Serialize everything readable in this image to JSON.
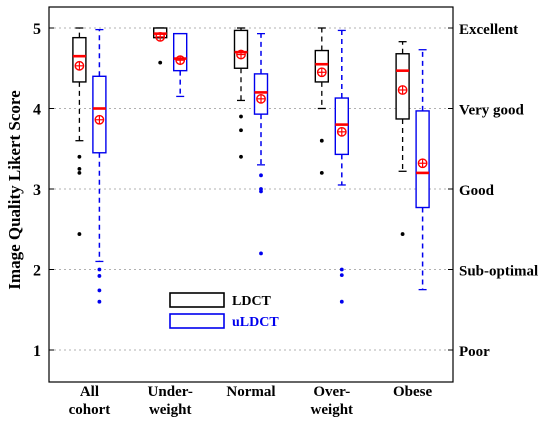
{
  "chart_data": {
    "type": "box",
    "ylabel": "Image Quality Likert Score",
    "ylim": [
      0.5,
      5.3
    ],
    "yticks": [
      "1",
      "2",
      "3",
      "4",
      "5"
    ],
    "right_axis_labels": [
      {
        "value": 5,
        "label": "Excellent"
      },
      {
        "value": 4,
        "label": "Very good"
      },
      {
        "value": 3,
        "label": "Good"
      },
      {
        "value": 2,
        "label": "Sub-optimal"
      },
      {
        "value": 1,
        "label": "Poor"
      }
    ],
    "grid": "horizontal dotted",
    "legend_position": "center-bottom",
    "categories": [
      {
        "line1": "All",
        "line2": "cohort"
      },
      {
        "line1": "Under-",
        "line2": "weight"
      },
      {
        "line1": "Normal",
        "line2": ""
      },
      {
        "line1": "Over-",
        "line2": "weight"
      },
      {
        "line1": "Obese",
        "line2": ""
      }
    ],
    "series": [
      {
        "name": "LDCT",
        "color": "#000000",
        "boxes": [
          {
            "q1": 4.33,
            "median": 4.65,
            "q3": 4.88,
            "whisker_low": 3.6,
            "whisker_high": 5.0,
            "mean": 4.53,
            "outliers": [
              3.4,
              3.25,
              3.2,
              2.44
            ]
          },
          {
            "q1": 4.88,
            "median": 4.93,
            "q3": 5.0,
            "whisker_low": 4.88,
            "whisker_high": 5.0,
            "mean": 4.89,
            "outliers": [
              4.57
            ]
          },
          {
            "q1": 4.5,
            "median": 4.7,
            "q3": 4.97,
            "whisker_low": 4.1,
            "whisker_high": 5.0,
            "mean": 4.67,
            "outliers": [
              3.9,
              3.73,
              3.4
            ]
          },
          {
            "q1": 4.33,
            "median": 4.55,
            "q3": 4.72,
            "whisker_low": 4.0,
            "whisker_high": 5.0,
            "mean": 4.45,
            "outliers": [
              3.6,
              3.2
            ]
          },
          {
            "q1": 3.87,
            "median": 4.47,
            "q3": 4.68,
            "whisker_low": 3.22,
            "whisker_high": 4.83,
            "mean": 4.23,
            "outliers": [
              2.44
            ]
          }
        ]
      },
      {
        "name": "uLDCT",
        "color": "#0000ee",
        "boxes": [
          {
            "q1": 3.45,
            "median": 4.0,
            "q3": 4.4,
            "whisker_low": 2.1,
            "whisker_high": 4.98,
            "mean": 3.86,
            "outliers": [
              2.0,
              1.92,
              1.74,
              1.6
            ]
          },
          {
            "q1": 4.47,
            "median": 4.62,
            "q3": 4.93,
            "whisker_low": 4.15,
            "whisker_high": 4.93,
            "mean": 4.6,
            "outliers": []
          },
          {
            "q1": 3.93,
            "median": 4.2,
            "q3": 4.43,
            "whisker_low": 3.3,
            "whisker_high": 4.93,
            "mean": 4.12,
            "outliers": [
              3.17,
              3.0,
              2.97,
              2.2
            ]
          },
          {
            "q1": 3.43,
            "median": 3.8,
            "q3": 4.13,
            "whisker_low": 3.05,
            "whisker_high": 4.97,
            "mean": 3.71,
            "outliers": [
              2.0,
              1.93,
              1.6
            ]
          },
          {
            "q1": 2.77,
            "median": 3.2,
            "q3": 3.97,
            "whisker_low": 1.75,
            "whisker_high": 4.73,
            "mean": 3.32,
            "outliers": []
          }
        ]
      }
    ],
    "median_color": "#ff0000",
    "mean_marker_color": "#ff0000"
  }
}
